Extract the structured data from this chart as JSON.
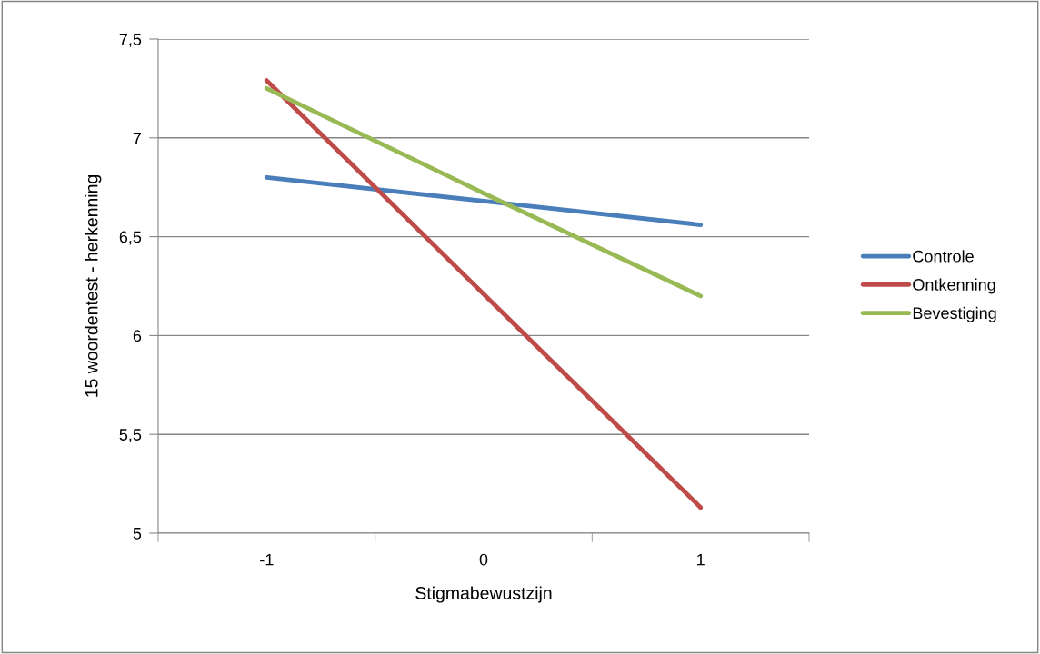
{
  "chart_data": {
    "type": "line",
    "xlabel": "Stigmabewustzijn",
    "ylabel": "15 woordentest - herkenning",
    "categories": [
      "-1",
      "0",
      "1"
    ],
    "series": [
      {
        "name": "Controle",
        "color": "#4a7ebb",
        "values": [
          6.8,
          6.68,
          6.56
        ]
      },
      {
        "name": "Ontkenning",
        "color": "#be4b48",
        "values": [
          7.29,
          6.21,
          5.13
        ]
      },
      {
        "name": "Bevestiging",
        "color": "#98b954",
        "values": [
          7.25,
          6.72,
          6.2
        ]
      }
    ],
    "ylim": [
      5,
      7.5
    ],
    "yticks": [
      5,
      {
        "value": 5.5,
        "label": "5,5"
      },
      6,
      {
        "value": 6.5,
        "label": "6,5"
      },
      7,
      {
        "value": 7.5,
        "label": "7,5"
      }
    ],
    "grid": "y",
    "legend": "right",
    "marker": "none",
    "line_style": "solid"
  }
}
